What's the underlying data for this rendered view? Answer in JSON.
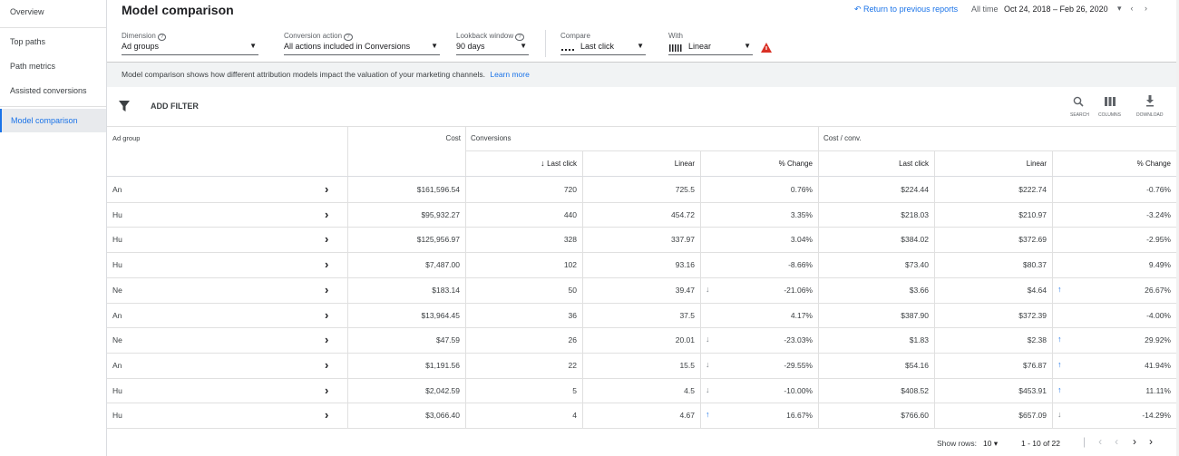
{
  "sidebar": {
    "items": [
      "Overview",
      "Top paths",
      "Path metrics",
      "Assisted conversions",
      "Model comparison"
    ]
  },
  "header": {
    "title": "Model comparison",
    "back_link": "Return to previous reports",
    "range_label": "All time",
    "date_range": "Oct 24, 2018 – Feb 26, 2020"
  },
  "filters": [
    {
      "label": "Dimension",
      "value": "Ad groups"
    },
    {
      "label": "Conversion action",
      "value": "All actions included in Conversions"
    },
    {
      "label": "Lookback window",
      "value": "90 days"
    },
    {
      "label": "Compare",
      "value": "Last click"
    },
    {
      "label": "With",
      "value": "Linear"
    }
  ],
  "info": {
    "text": "Model comparison shows how different attribution models impact the valuation of your marketing channels.",
    "link": "Learn more"
  },
  "toolbar": {
    "add_filter": "ADD FILTER",
    "search": "SEARCH",
    "columns": "COLUMNS",
    "download": "DOWNLOAD"
  },
  "table": {
    "groups": [
      "Ad group",
      "Cost",
      "Conversions",
      "Cost / conv."
    ],
    "subheaders": [
      "Last click",
      "Linear",
      "% Change",
      "Last click",
      "Linear",
      "% Change"
    ],
    "rows": [
      [
        "An",
        "$161,596.54",
        "720",
        "725.5",
        "0.76%",
        "$224.44",
        "$222.74",
        "-0.76%"
      ],
      [
        "Hu",
        "$95,932.27",
        "440",
        "454.72",
        "3.35%",
        "$218.03",
        "$210.97",
        "-3.24%"
      ],
      [
        "Hu",
        "$125,956.97",
        "328",
        "337.97",
        "3.04%",
        "$384.02",
        "$372.69",
        "-2.95%"
      ],
      [
        "Hu",
        "$7,487.00",
        "102",
        "93.16",
        "-8.66%",
        "$73.40",
        "$80.37",
        "9.49%"
      ],
      [
        "Ne",
        "$183.14",
        "50",
        "39.47",
        "-21.06%",
        "$3.66",
        "$4.64",
        "26.67%"
      ],
      [
        "An",
        "$13,964.45",
        "36",
        "37.5",
        "4.17%",
        "$387.90",
        "$372.39",
        "-4.00%"
      ],
      [
        "Ne",
        "$47.59",
        "26",
        "20.01",
        "-23.03%",
        "$1.83",
        "$2.38",
        "29.92%"
      ],
      [
        "An",
        "$1,191.56",
        "22",
        "15.5",
        "-29.55%",
        "$54.16",
        "$76.87",
        "41.94%"
      ],
      [
        "Hu",
        "$2,042.59",
        "5",
        "4.5",
        "-10.00%",
        "$408.52",
        "$453.91",
        "11.11%"
      ],
      [
        "Hu",
        "$3,066.40",
        "4",
        "4.67",
        "16.67%",
        "$766.60",
        "$657.09",
        "-14.29%"
      ]
    ]
  },
  "footer": {
    "show_rows": "Show rows:",
    "rows_value": "10",
    "pagination": "1 - 10 of 22"
  }
}
